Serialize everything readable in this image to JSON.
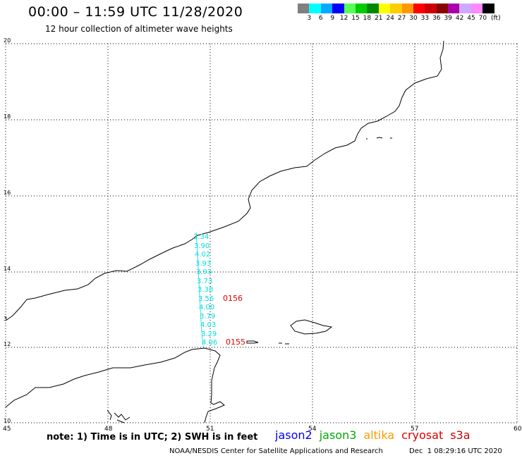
{
  "header": {
    "title": "00:00 – 11:59 UTC 11/28/2020",
    "subtitle": "12 hour collection of altimeter wave heights"
  },
  "legend": {
    "colors": [
      "#808080",
      "#00ffff",
      "#00aaff",
      "#0000ff",
      "#55ff55",
      "#00cc00",
      "#008800",
      "#ffff00",
      "#ffcc00",
      "#ff9900",
      "#ff0000",
      "#cc0000",
      "#880000",
      "#aa00aa",
      "#ccaaff",
      "#ff88ff",
      "#000000"
    ],
    "labels": [
      "3",
      "6",
      "9",
      "12",
      "15",
      "18",
      "21",
      "24",
      "27",
      "30",
      "33",
      "36",
      "39",
      "42",
      "45",
      "70",
      "(ft)"
    ]
  },
  "map": {
    "lat_labels": [
      "20",
      "18",
      "16",
      "14",
      "12",
      "10"
    ],
    "lon_labels": [
      "45",
      "48",
      "51",
      "54",
      "57",
      "60"
    ],
    "edge_lat_label": "3",
    "wave_heights": [
      "3.34",
      "3.90",
      "4.02",
      "3.93",
      "3.93",
      "3.73",
      "3.38",
      "3.56",
      "4.00",
      "3.79",
      "4.03",
      "3.29",
      "4.06"
    ],
    "track_labels": [
      "0156",
      "0155"
    ]
  },
  "footer": {
    "note": "note: 1) Time is in UTC; 2) SWH is in feet",
    "satellites": [
      {
        "name": "jason2",
        "color": "#0000ff"
      },
      {
        "name": "jason3",
        "color": "#00aa00"
      },
      {
        "name": "altika",
        "color": "#ff9900"
      },
      {
        "name": "cryosat",
        "color": "#dd0000"
      },
      {
        "name": "s3a",
        "color": "#cc0000"
      }
    ],
    "credit": "NOAA/NESDIS Center for Satellite Applications and Research",
    "timestamp": "Dec  1 08:29:16 UTC 2020"
  }
}
